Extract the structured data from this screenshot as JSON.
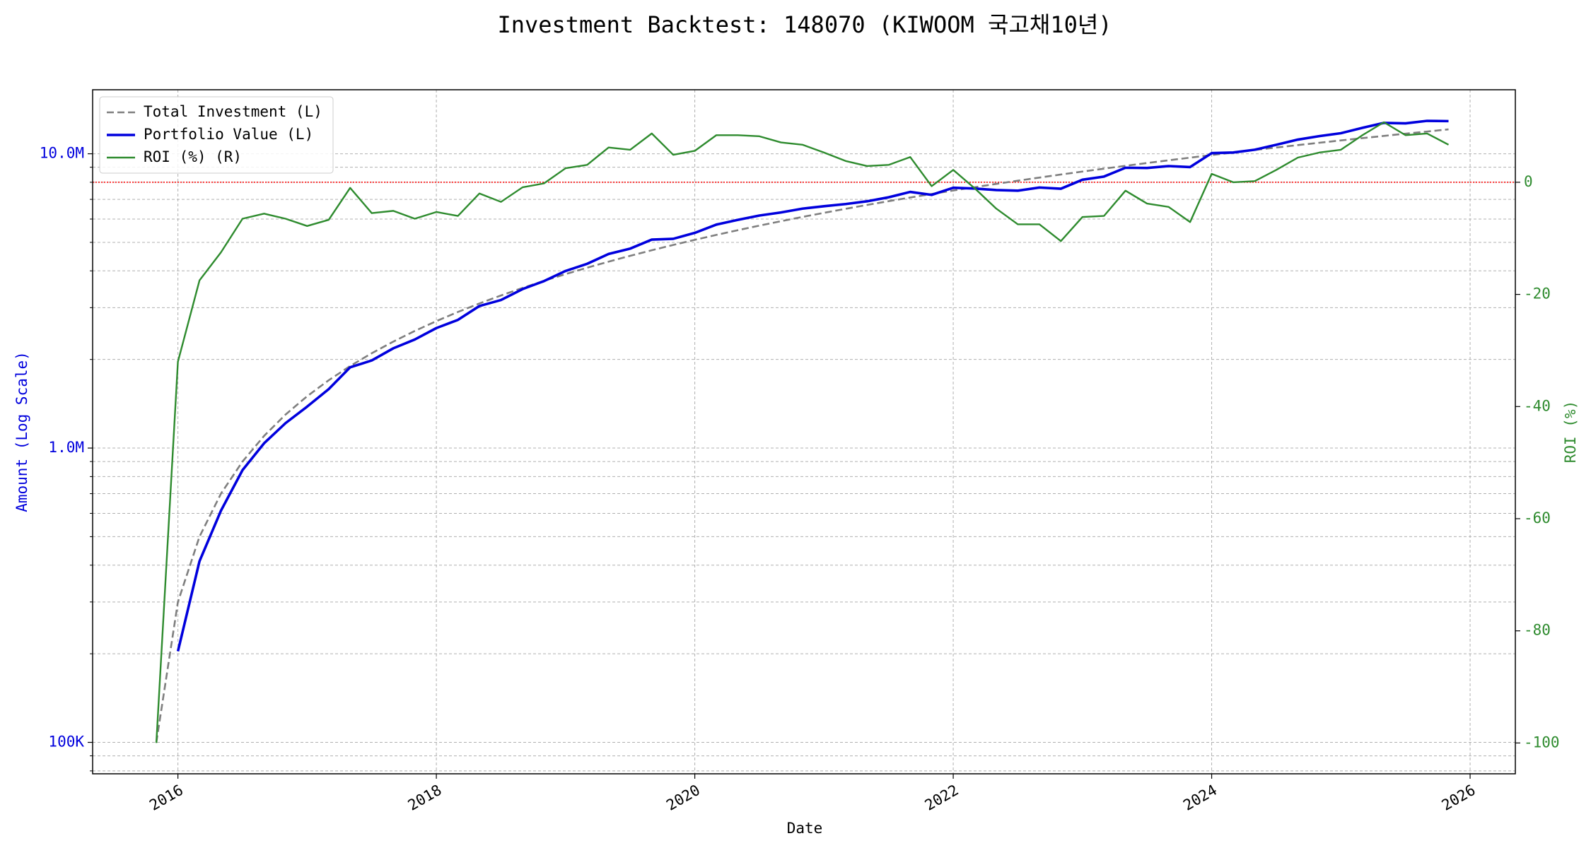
{
  "chart_data": {
    "type": "line",
    "title": "Investment Backtest: 148070 (KIWOOM 국고채10년)",
    "xlabel": "Date",
    "ylabel": "Amount (Log Scale)",
    "y2label": "ROI (%)",
    "yscale": "log",
    "grid": true,
    "legend": "upper left",
    "x": [
      2015.833,
      2016.0,
      2016.167,
      2016.333,
      2016.5,
      2016.667,
      2016.833,
      2017.0,
      2017.167,
      2017.333,
      2017.5,
      2017.667,
      2017.833,
      2018.0,
      2018.167,
      2018.333,
      2018.5,
      2018.667,
      2018.833,
      2019.0,
      2019.167,
      2019.333,
      2019.5,
      2019.667,
      2019.833,
      2020.0,
      2020.167,
      2020.333,
      2020.5,
      2020.667,
      2020.833,
      2021.0,
      2021.167,
      2021.333,
      2021.5,
      2021.667,
      2021.833,
      2022.0,
      2022.167,
      2022.333,
      2022.5,
      2022.667,
      2022.833,
      2023.0,
      2023.167,
      2023.333,
      2023.5,
      2023.667,
      2023.833,
      2024.0,
      2024.167,
      2024.333,
      2024.5,
      2024.667,
      2024.833,
      2025.0,
      2025.167,
      2025.333,
      2025.5,
      2025.667,
      2025.833
    ],
    "xlim": [
      2015.34,
      2026.35
    ],
    "xticks": [
      2016,
      2018,
      2020,
      2022,
      2024,
      2026
    ],
    "ylim": [
      78200,
      16500000
    ],
    "yticks": [
      {
        "value": 100000,
        "label": "100K"
      },
      {
        "value": 1000000,
        "label": "1.0M"
      },
      {
        "value": 10000000,
        "label": "10.0M"
      }
    ],
    "yminorticks": [
      80000,
      90000,
      200000,
      300000,
      400000,
      500000,
      600000,
      700000,
      800000,
      900000,
      2000000,
      3000000,
      4000000,
      5000000,
      6000000,
      7000000,
      8000000,
      9000000
    ],
    "y2lim": [
      -105.5,
      16.5
    ],
    "y2ticks": [
      -100,
      -80,
      -60,
      -40,
      -20,
      0
    ],
    "reference_line": {
      "axis": "y2",
      "value": 0,
      "color": "#ff0000"
    },
    "series": [
      {
        "name": "Total Investment (L)",
        "color": "#7f7f7f",
        "style": "dashed",
        "axis": "y",
        "values": [
          100000,
          300000,
          500000,
          700000,
          900000,
          1100000,
          1300000,
          1500000,
          1700000,
          1900000,
          2100000,
          2300000,
          2500000,
          2700000,
          2900000,
          3100000,
          3300000,
          3500000,
          3700000,
          3900000,
          4100000,
          4300000,
          4500000,
          4700000,
          4900000,
          5100000,
          5300000,
          5500000,
          5700000,
          5900000,
          6100000,
          6300000,
          6500000,
          6700000,
          6900000,
          7100000,
          7300000,
          7500000,
          7700000,
          7900000,
          8100000,
          8300000,
          8500000,
          8700000,
          8900000,
          9100000,
          9300000,
          9500000,
          9700000,
          9900000,
          10100000,
          10300000,
          10500000,
          10700000,
          10900000,
          11100000,
          11300000,
          11500000,
          11700000,
          11900000,
          12100000
        ]
      },
      {
        "name": "Portfolio Value (L)",
        "color": "#0000dd",
        "style": "solid",
        "axis": "y",
        "values": [
          null,
          204000,
          412500,
          612500,
          841500,
          1038400,
          1215500,
          1383000,
          1586100,
          1881000,
          1984500,
          2182700,
          2337500,
          2556900,
          2726000,
          3038000,
          3184500,
          3468500,
          3692600,
          3997500,
          4227100,
          4566600,
          4761000,
          5108900,
          5140100,
          5385600,
          5745200,
          5962000,
          6167400,
          6318900,
          6508700,
          6633900,
          6747000,
          6894300,
          7113900,
          7419500,
          7248900,
          7665000,
          7615300,
          7528700,
          7492500,
          7677500,
          7607500,
          8160600,
          8366000,
          8963500,
          8946600,
          9082000,
          9011300,
          10048500,
          10100000,
          10320600,
          10731000,
          11170800,
          11477700,
          11743800,
          12249200,
          12730500,
          12682800,
          12935300,
          12910700
        ]
      },
      {
        "name": "ROI (%) (R)",
        "color": "#2e8b2e",
        "style": "solid",
        "axis": "y2",
        "values": [
          -100,
          -32,
          -17.5,
          -12.5,
          -6.5,
          -5.6,
          -6.5,
          -7.8,
          -6.7,
          -1,
          -5.5,
          -5.1,
          -6.5,
          -5.3,
          -6,
          -2,
          -3.5,
          -0.9,
          -0.2,
          2.5,
          3.1,
          6.2,
          5.8,
          8.7,
          4.9,
          5.6,
          8.4,
          8.4,
          8.2,
          7.1,
          6.7,
          5.3,
          3.8,
          2.9,
          3.1,
          4.5,
          -0.7,
          2.2,
          -1.1,
          -4.7,
          -7.5,
          -7.5,
          -10.5,
          -6.2,
          -6,
          -1.5,
          -3.8,
          -4.4,
          -7.1,
          1.5,
          0,
          0.2,
          2.2,
          4.4,
          5.3,
          5.8,
          8.4,
          10.7,
          8.4,
          8.7,
          6.7
        ]
      }
    ]
  }
}
